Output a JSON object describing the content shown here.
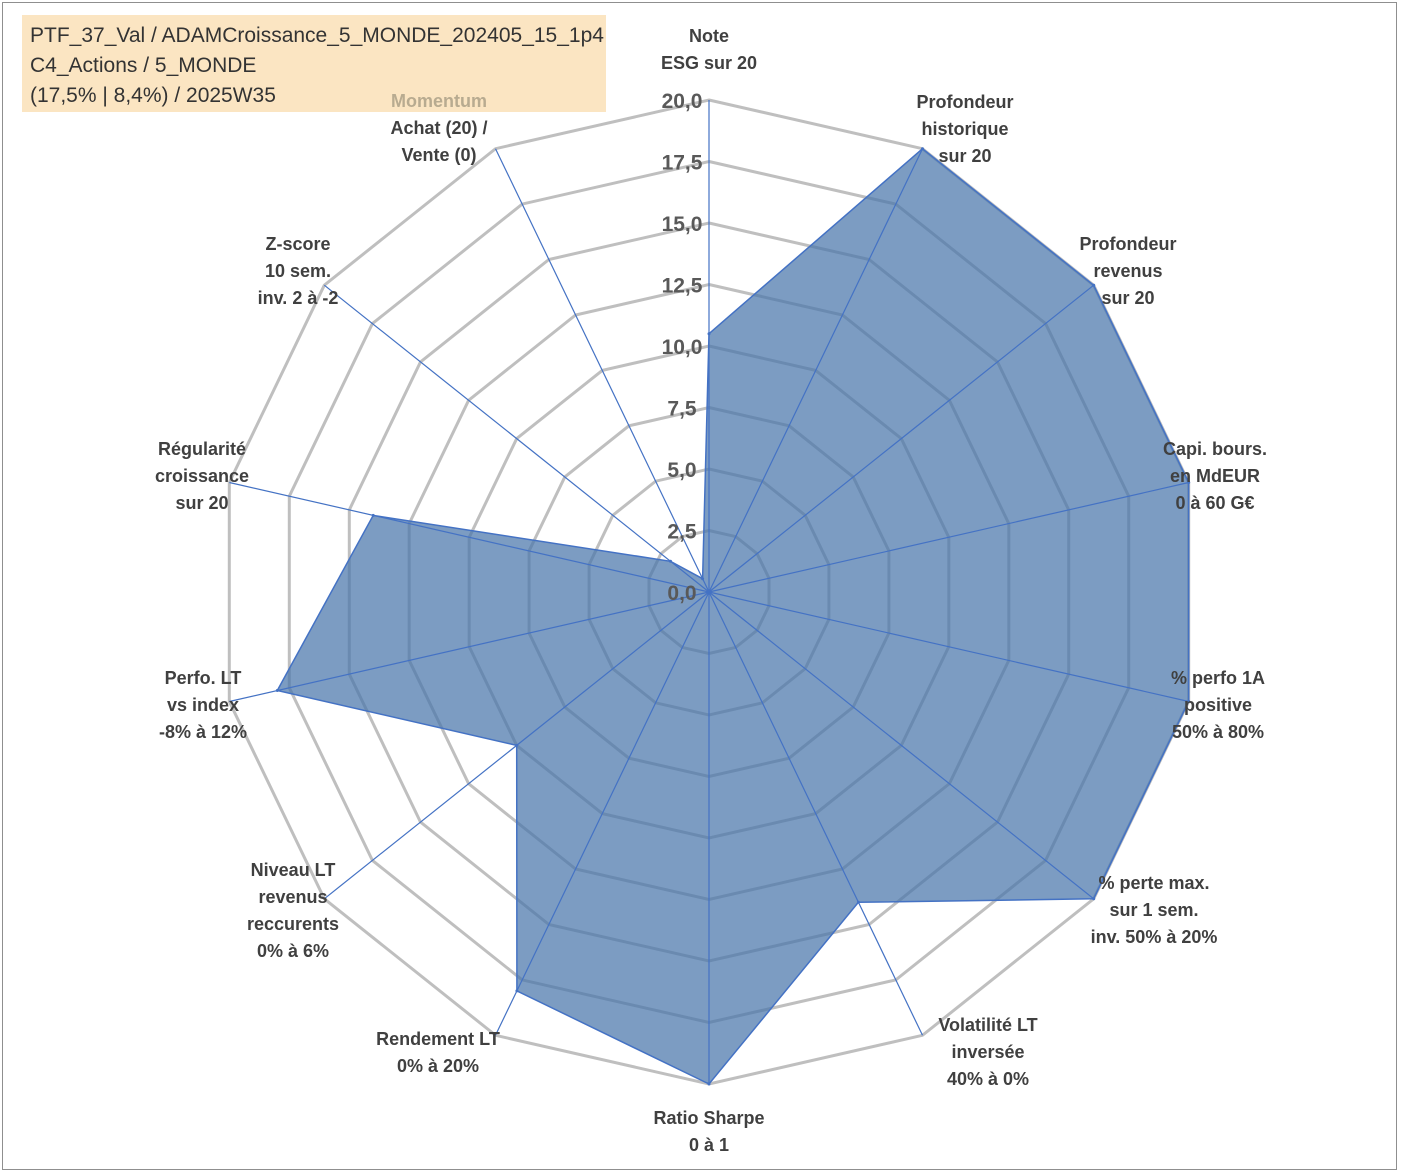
{
  "info": {
    "lines": [
      "PTF_37_Val / ADAMCroissance_5_MONDE_202405_15_1p4",
      "C4_Actions / 5_MONDE",
      "(17,5% | 8,4%) / 2025W35"
    ]
  },
  "chart_data": {
    "type": "radar",
    "title": "",
    "scale": {
      "min": 0,
      "max": 20,
      "step": 2.5
    },
    "tick_labels": [
      "0,0",
      "2,5",
      "5,0",
      "7,5",
      "10,0",
      "12,5",
      "15,0",
      "17,5",
      "20,0"
    ],
    "grid": true,
    "colors": {
      "fill": "#4a76aa",
      "fill_opacity": 0.72,
      "line": "#4472c4",
      "grid": "#bfbfbf",
      "highlight_label": "#b8ab90"
    },
    "axes": [
      {
        "label_lines": [
          "Note",
          "ESG sur 20"
        ],
        "value": 10.5
      },
      {
        "label_lines": [
          "Profondeur",
          "historique",
          "sur 20"
        ],
        "value": 20
      },
      {
        "label_lines": [
          "Profondeur",
          "revenus",
          "sur 20"
        ],
        "value": 20
      },
      {
        "label_lines": [
          "Capi. bours.",
          "en MdEUR",
          "0 à 60 G€"
        ],
        "value": 20
      },
      {
        "label_lines": [
          "% perfo 1A",
          "positive",
          "50% à 80%"
        ],
        "value": 20
      },
      {
        "label_lines": [
          "% perte max.",
          "sur 1 sem.",
          "inv. 50% à 20%"
        ],
        "value": 20
      },
      {
        "label_lines": [
          "Volatilité LT",
          "inversée",
          "40% à 0%"
        ],
        "value": 14
      },
      {
        "label_lines": [
          "Ratio Sharpe",
          "0 à 1"
        ],
        "value": 20
      },
      {
        "label_lines": [
          "Rendement LT",
          "0% à 20%"
        ],
        "value": 18
      },
      {
        "label_lines": [
          "Niveau LT",
          "revenus",
          "reccurents",
          "0% à 6%"
        ],
        "value": 10
      },
      {
        "label_lines": [
          "Perfo. LT",
          "vs index",
          "-8% à 12%"
        ],
        "value": 18
      },
      {
        "label_lines": [
          "Régularité",
          "croissance",
          "sur 20"
        ],
        "value": 14
      },
      {
        "label_lines": [
          "Z-score",
          "10 sem.",
          "inv. 2 à -2"
        ],
        "value": 2
      },
      {
        "label_lines": [
          "Momentum",
          "Achat (20) /",
          "Vente (0)"
        ],
        "value": 0.6,
        "highlight_first_line": true
      }
    ]
  }
}
